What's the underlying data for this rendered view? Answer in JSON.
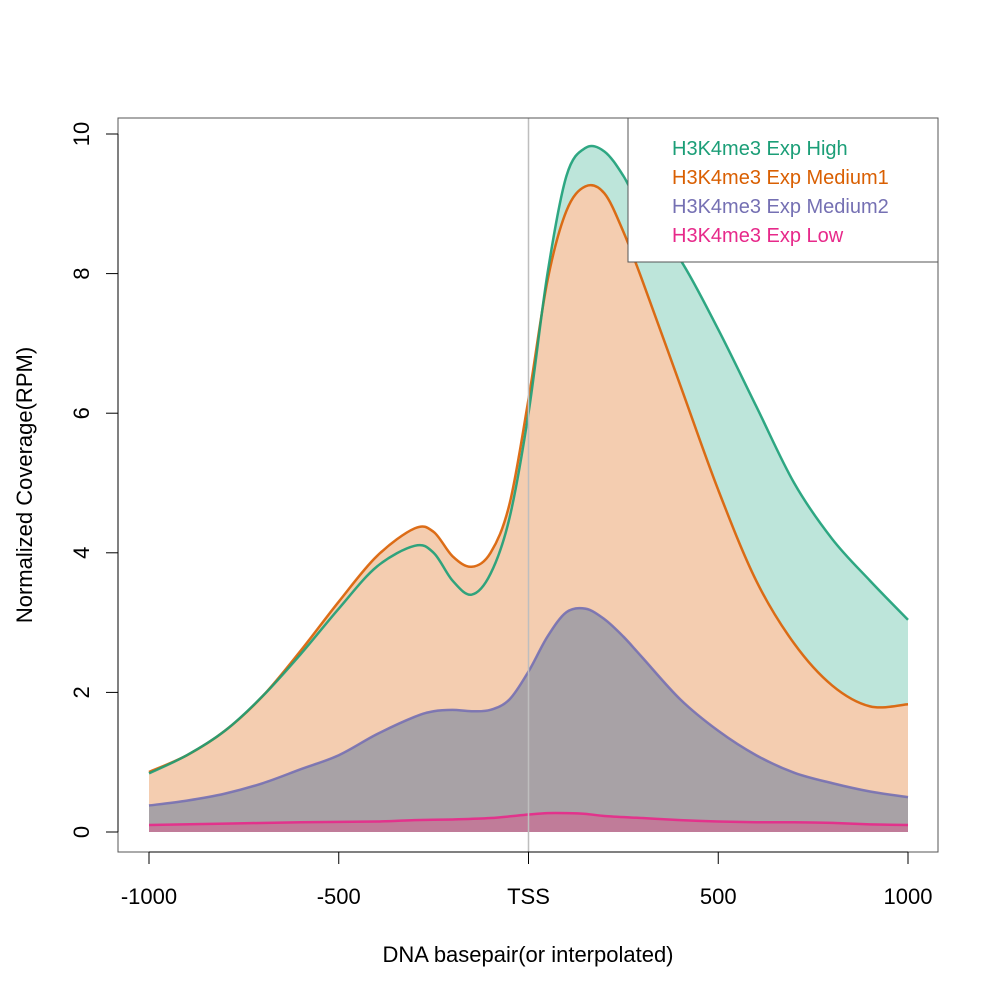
{
  "chart_data": {
    "type": "area",
    "xlabel": "DNA basepair(or interpolated)",
    "ylabel": "Normalized Coverage(RPM)",
    "xlim": [
      -1000,
      1000
    ],
    "ylim": [
      0,
      10
    ],
    "x_ticks": [
      {
        "value": -1000,
        "label": "-1000"
      },
      {
        "value": -500,
        "label": "-500"
      },
      {
        "value": 0,
        "label": "TSS"
      },
      {
        "value": 500,
        "label": "500"
      },
      {
        "value": 1000,
        "label": "1000"
      }
    ],
    "y_ticks": [
      {
        "value": 0,
        "label": "0"
      },
      {
        "value": 2,
        "label": "2"
      },
      {
        "value": 4,
        "label": "4"
      },
      {
        "value": 6,
        "label": "6"
      },
      {
        "value": 8,
        "label": "8"
      },
      {
        "value": 10,
        "label": "10"
      }
    ],
    "vline": {
      "x": 0,
      "color": "#bebebe"
    },
    "legend_position": "top-right",
    "series": [
      {
        "name": "H3K4me3 Exp High",
        "color": "#1b9e77",
        "fill": "#bde5da",
        "x": [
          -1000,
          -900,
          -800,
          -700,
          -600,
          -500,
          -400,
          -300,
          -250,
          -200,
          -150,
          -100,
          -50,
          0,
          50,
          100,
          150,
          200,
          250,
          300,
          400,
          500,
          600,
          700,
          800,
          900,
          1000
        ],
        "y": [
          0.84,
          1.1,
          1.45,
          1.95,
          2.55,
          3.2,
          3.8,
          4.1,
          4.0,
          3.6,
          3.4,
          3.7,
          4.5,
          6.0,
          8.0,
          9.4,
          9.8,
          9.75,
          9.4,
          8.9,
          8.2,
          7.2,
          6.1,
          5.0,
          4.2,
          3.6,
          3.04
        ]
      },
      {
        "name": "H3K4me3 Exp Medium1",
        "color": "#d95f02",
        "fill": "#f4cdb0",
        "x": [
          -1000,
          -900,
          -800,
          -700,
          -600,
          -500,
          -400,
          -300,
          -250,
          -200,
          -150,
          -100,
          -50,
          0,
          50,
          100,
          150,
          200,
          250,
          300,
          400,
          500,
          600,
          700,
          800,
          900,
          1000
        ],
        "y": [
          0.86,
          1.1,
          1.45,
          1.95,
          2.6,
          3.3,
          3.95,
          4.35,
          4.3,
          3.95,
          3.8,
          4.0,
          4.7,
          6.2,
          7.9,
          8.9,
          9.25,
          9.15,
          8.6,
          7.9,
          6.4,
          4.9,
          3.6,
          2.7,
          2.1,
          1.8,
          1.83
        ]
      },
      {
        "name": "H3K4me3 Exp Medium2",
        "color": "#7570b3",
        "fill": "#a8a2a6",
        "x": [
          -1000,
          -900,
          -800,
          -700,
          -600,
          -500,
          -400,
          -300,
          -250,
          -200,
          -150,
          -100,
          -50,
          0,
          50,
          100,
          150,
          200,
          250,
          300,
          400,
          500,
          600,
          700,
          800,
          900,
          1000
        ],
        "y": [
          0.38,
          0.45,
          0.55,
          0.7,
          0.9,
          1.1,
          1.4,
          1.65,
          1.73,
          1.75,
          1.73,
          1.75,
          1.9,
          2.3,
          2.8,
          3.15,
          3.2,
          3.05,
          2.8,
          2.5,
          1.9,
          1.45,
          1.1,
          0.85,
          0.7,
          0.58,
          0.5
        ]
      },
      {
        "name": "H3K4me3 Exp Low",
        "color": "#e7298a",
        "fill": "#c07c99",
        "x": [
          -1000,
          -800,
          -600,
          -400,
          -300,
          -200,
          -100,
          0,
          50,
          100,
          150,
          200,
          300,
          400,
          500,
          600,
          700,
          800,
          900,
          1000
        ],
        "y": [
          0.1,
          0.12,
          0.14,
          0.15,
          0.17,
          0.18,
          0.2,
          0.25,
          0.27,
          0.27,
          0.26,
          0.23,
          0.2,
          0.17,
          0.15,
          0.14,
          0.14,
          0.13,
          0.11,
          0.1
        ]
      }
    ]
  }
}
